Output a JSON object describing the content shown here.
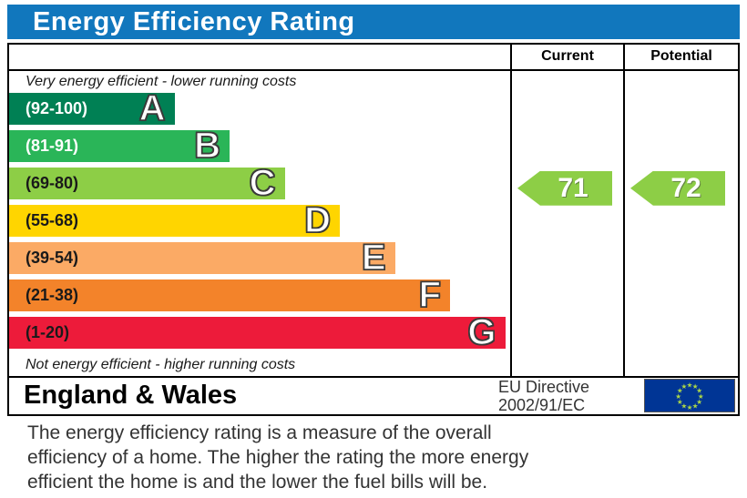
{
  "title": "Energy Efficiency Rating",
  "table": {
    "columns": {
      "current": "Current",
      "potential": "Potential"
    },
    "top_label": "Very energy efficient - lower running costs",
    "bottom_label": "Not energy efficient - higher running costs"
  },
  "chart_data": {
    "type": "bar",
    "title": "Energy Efficiency Rating",
    "bands": [
      {
        "letter": "A",
        "range": "(92-100)",
        "min": 92,
        "max": 100,
        "color": "#008054",
        "width_pct": 33,
        "range_text_color": "#ffffff"
      },
      {
        "letter": "B",
        "range": "(81-91)",
        "min": 81,
        "max": 91,
        "color": "#2ab558",
        "width_pct": 44,
        "range_text_color": "#ffffff"
      },
      {
        "letter": "C",
        "range": "(69-80)",
        "min": 69,
        "max": 80,
        "color": "#8dce46",
        "width_pct": 55,
        "range_text_color": "#1a1a1a"
      },
      {
        "letter": "D",
        "range": "(55-68)",
        "min": 55,
        "max": 68,
        "color": "#ffd500",
        "width_pct": 66,
        "range_text_color": "#1a1a1a"
      },
      {
        "letter": "E",
        "range": "(39-54)",
        "min": 39,
        "max": 54,
        "color": "#fbaa65",
        "width_pct": 77,
        "range_text_color": "#1a1a1a"
      },
      {
        "letter": "F",
        "range": "(21-38)",
        "min": 21,
        "max": 38,
        "color": "#f3832a",
        "width_pct": 88,
        "range_text_color": "#1a1a1a"
      },
      {
        "letter": "G",
        "range": "(1-20)",
        "min": 1,
        "max": 20,
        "color": "#ed1b3a",
        "width_pct": 99,
        "range_text_color": "#1a1a1a"
      }
    ],
    "current": {
      "value": 71,
      "band": "C",
      "color": "#8dce46"
    },
    "potential": {
      "value": 72,
      "band": "C",
      "color": "#8dce46"
    }
  },
  "footer": {
    "region": "England & Wales",
    "directive_line1": "EU Directive",
    "directive_line2": "2002/91/EC",
    "flag_colors": {
      "background": "#003595",
      "stars": "#a9d548"
    }
  },
  "description": "The energy efficiency rating is a measure of the overall\nefficiency of a home.  The higher the rating the more energy\nefficient the home is and the lower the fuel bills will be.",
  "colors": {
    "title_bg": "#1177bd",
    "title_text": "#ffffff",
    "border": "#000000"
  }
}
